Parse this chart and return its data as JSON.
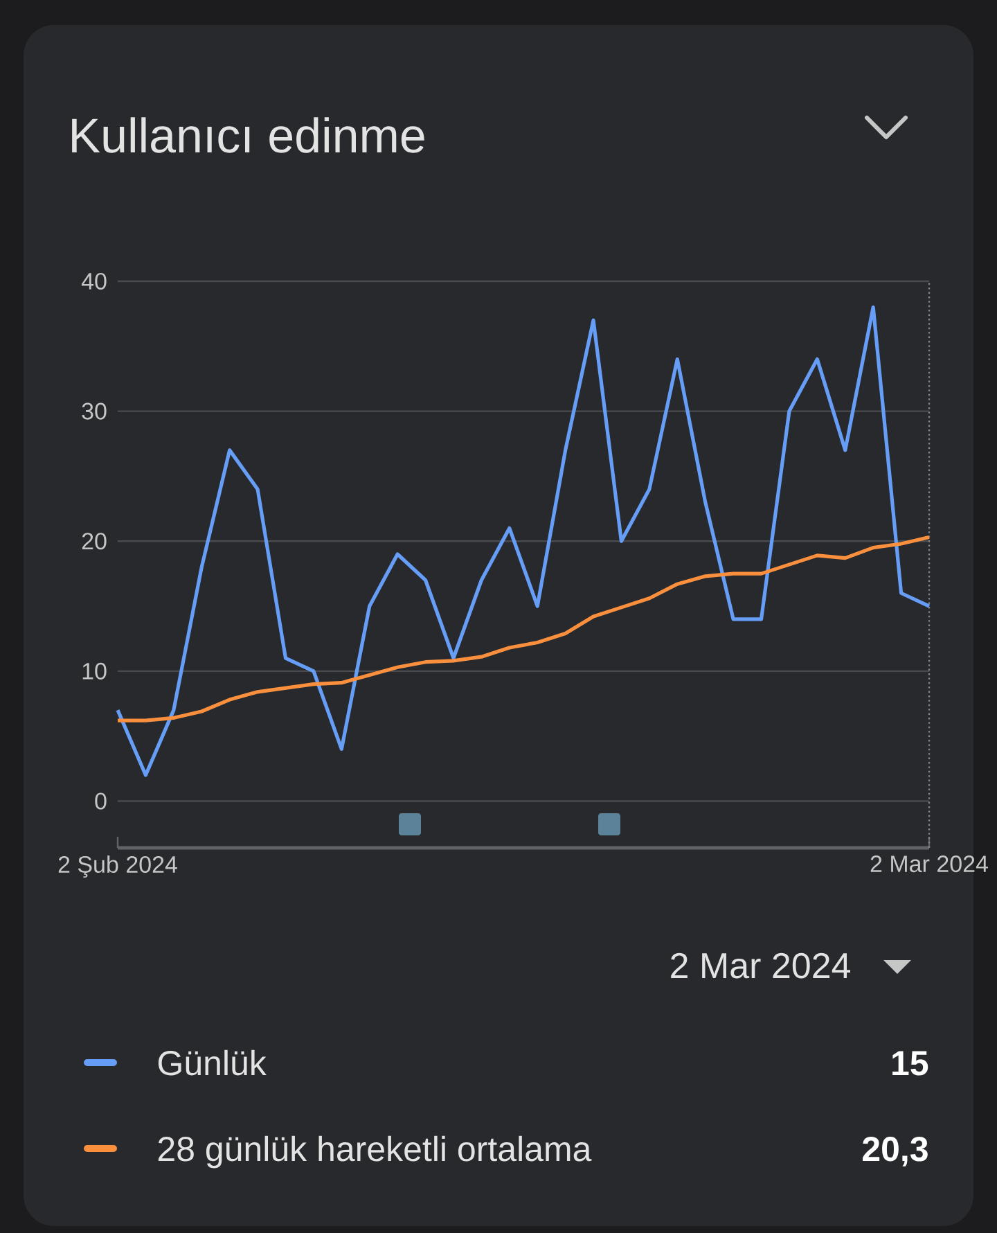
{
  "chart_data": {
    "type": "line",
    "title": "Kullanıcı edinme",
    "x": [
      "2024-02-02",
      "2024-02-03",
      "2024-02-04",
      "2024-02-05",
      "2024-02-06",
      "2024-02-07",
      "2024-02-08",
      "2024-02-09",
      "2024-02-10",
      "2024-02-11",
      "2024-02-12",
      "2024-02-13",
      "2024-02-14",
      "2024-02-15",
      "2024-02-16",
      "2024-02-17",
      "2024-02-18",
      "2024-02-19",
      "2024-02-20",
      "2024-02-21",
      "2024-02-22",
      "2024-02-23",
      "2024-02-24",
      "2024-02-25",
      "2024-02-26",
      "2024-02-27",
      "2024-02-28",
      "2024-02-29",
      "2024-03-01",
      "2024-03-02"
    ],
    "series": [
      {
        "name": "Günlük",
        "color": "#669df6",
        "values": [
          7,
          2,
          7,
          18,
          27,
          24,
          11,
          10,
          4,
          15,
          19,
          17,
          11,
          17,
          21,
          15,
          27,
          37,
          20,
          24,
          34,
          23,
          14,
          14,
          30,
          34,
          27,
          38,
          16,
          15
        ]
      },
      {
        "name": "28 günlük hareketli ortalama",
        "color": "#fa903e",
        "values": [
          6.2,
          6.2,
          6.4,
          6.9,
          7.8,
          8.4,
          8.7,
          9.0,
          9.1,
          9.7,
          10.3,
          10.7,
          10.8,
          11.1,
          11.8,
          12.2,
          12.9,
          14.2,
          14.9,
          15.6,
          16.7,
          17.3,
          17.5,
          17.5,
          18.2,
          18.9,
          18.7,
          19.5,
          19.8,
          20.3
        ]
      }
    ],
    "xlim": [
      "2024-02-02",
      "2024-03-02"
    ],
    "xticks": [
      {
        "value": "2024-02-02",
        "label": "2 Şub 2024"
      },
      {
        "value": "2024-03-02",
        "label": "2 Mar 2024"
      }
    ],
    "ylim": [
      -3.6,
      40
    ],
    "yticks": [
      0,
      10,
      20,
      30,
      40
    ],
    "grid": "y",
    "legend": "bottom",
    "marker": "none",
    "line_style": "solid",
    "ref_lines": [
      {
        "axis": "x",
        "value": "2024-03-02",
        "color": "#80868b",
        "line_style": "dotted"
      }
    ],
    "annotations": [
      "2 Mar 2024",
      "15",
      "20,3"
    ]
  }
}
